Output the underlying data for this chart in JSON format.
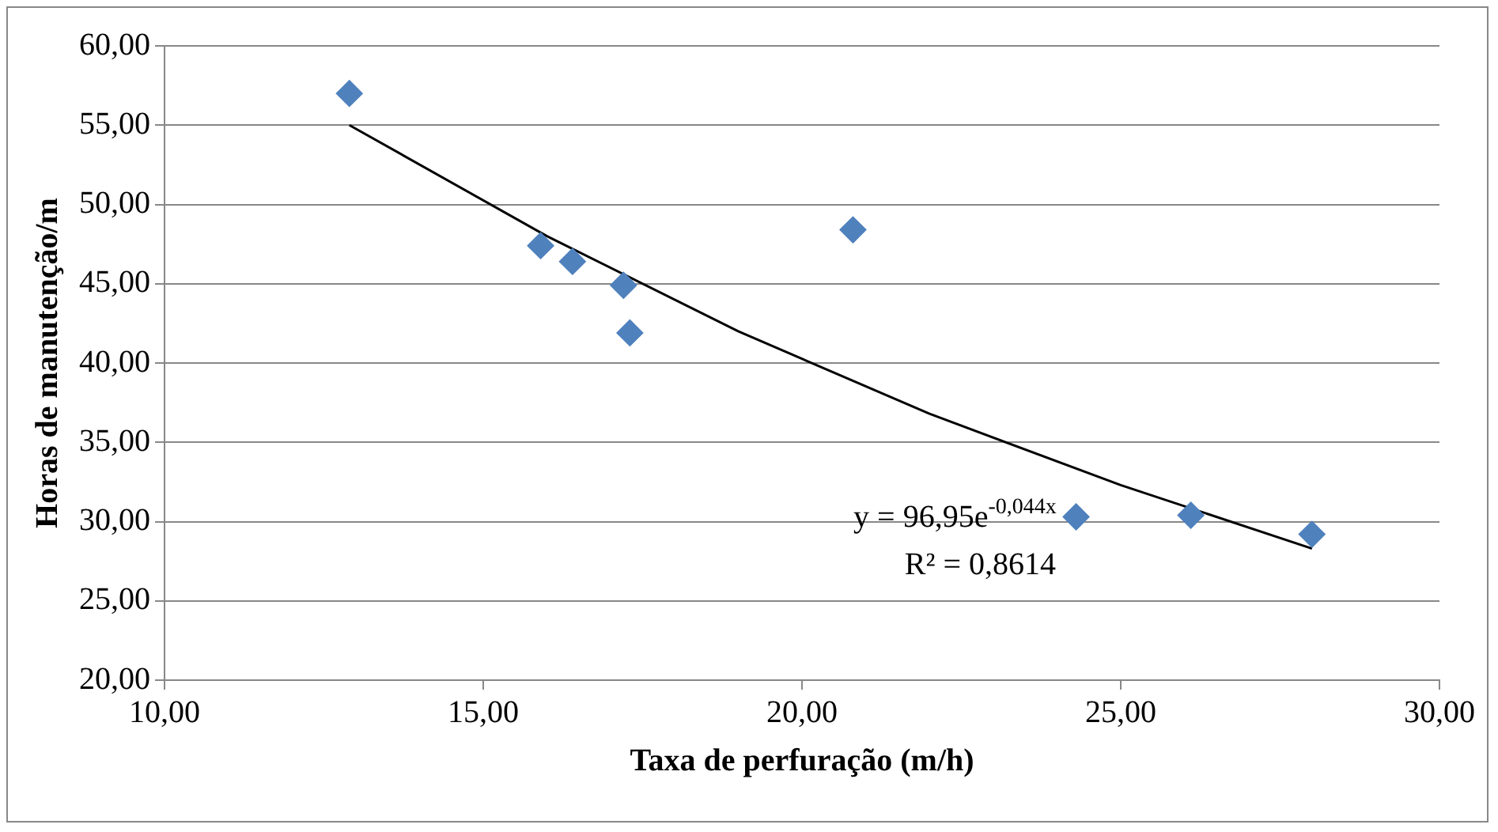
{
  "chart_data": {
    "type": "scatter",
    "xlabel": "Taxa de perfuração (m/h)",
    "ylabel": "Horas de manutenção/m",
    "series": [
      {
        "type": "scatter",
        "color": "#4f81bd",
        "marker": "diamond",
        "x": [
          12.9,
          15.9,
          16.4,
          17.2,
          17.3,
          20.8,
          24.3,
          26.1,
          28.0
        ],
        "values": [
          57.0,
          47.4,
          46.4,
          44.9,
          41.9,
          48.4,
          30.3,
          30.4,
          29.2
        ]
      },
      {
        "type": "line",
        "color": "#000000",
        "marker": "none",
        "line_style": "solid",
        "x": [
          12.9,
          16,
          19,
          22,
          25,
          28
        ],
        "values": [
          55.0,
          48.0,
          42.0,
          36.8,
          32.3,
          28.3
        ]
      }
    ],
    "xlim": [
      10,
      30
    ],
    "xticks": [
      {
        "value": 10,
        "label": "10,00"
      },
      {
        "value": 15,
        "label": "15,00"
      },
      {
        "value": 20,
        "label": "20,00"
      },
      {
        "value": 25,
        "label": "25,00"
      },
      {
        "value": 30,
        "label": "30,00"
      }
    ],
    "ylim": [
      20,
      60
    ],
    "yticks": [
      {
        "value": 20,
        "label": "20,00"
      },
      {
        "value": 25,
        "label": "25,00"
      },
      {
        "value": 30,
        "label": "30,00"
      },
      {
        "value": 35,
        "label": "35,00"
      },
      {
        "value": 40,
        "label": "40,00"
      },
      {
        "value": 45,
        "label": "45,00"
      },
      {
        "value": 50,
        "label": "50,00"
      },
      {
        "value": 55,
        "label": "55,00"
      },
      {
        "value": 60,
        "label": "60,00"
      }
    ],
    "grid": "y",
    "legend": false,
    "annotations": [
      "y = 96,95e$^{-0,044x}$",
      "R² = 0,8614"
    ]
  }
}
